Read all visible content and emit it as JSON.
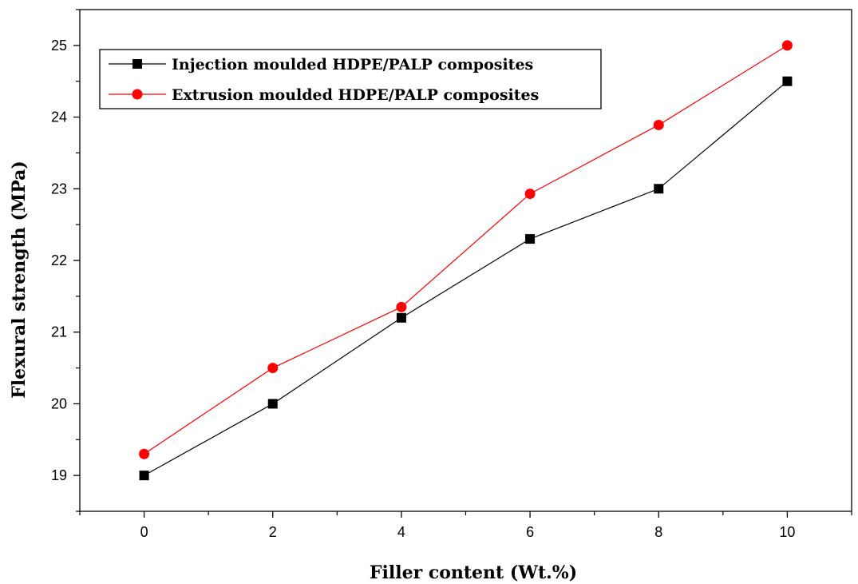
{
  "chart_data": {
    "type": "line",
    "title": "",
    "xlabel": "Filler content (Wt.%)",
    "ylabel": "Flexural strength (MPa)",
    "xlim": [
      -1,
      11
    ],
    "ylim": [
      18.5,
      25.5
    ],
    "xticks": [
      0,
      2,
      4,
      6,
      8,
      10
    ],
    "yticks": [
      19,
      20,
      21,
      22,
      23,
      24,
      25
    ],
    "legend_position": "top-left",
    "grid": false,
    "series": [
      {
        "name": "Injection moulded HDPE/PALP composites",
        "color": "#000000",
        "marker": "square",
        "x": [
          0,
          2,
          4,
          6,
          8,
          10
        ],
        "y": [
          19.0,
          20.0,
          21.2,
          22.3,
          23.0,
          24.5
        ]
      },
      {
        "name": "Extrusion moulded HDPE/PALP composites",
        "color": "#ff0000",
        "marker": "circle",
        "x": [
          0,
          2,
          4,
          6,
          8,
          10
        ],
        "y": [
          19.3,
          20.5,
          21.35,
          22.93,
          23.89,
          25.0
        ]
      }
    ]
  }
}
